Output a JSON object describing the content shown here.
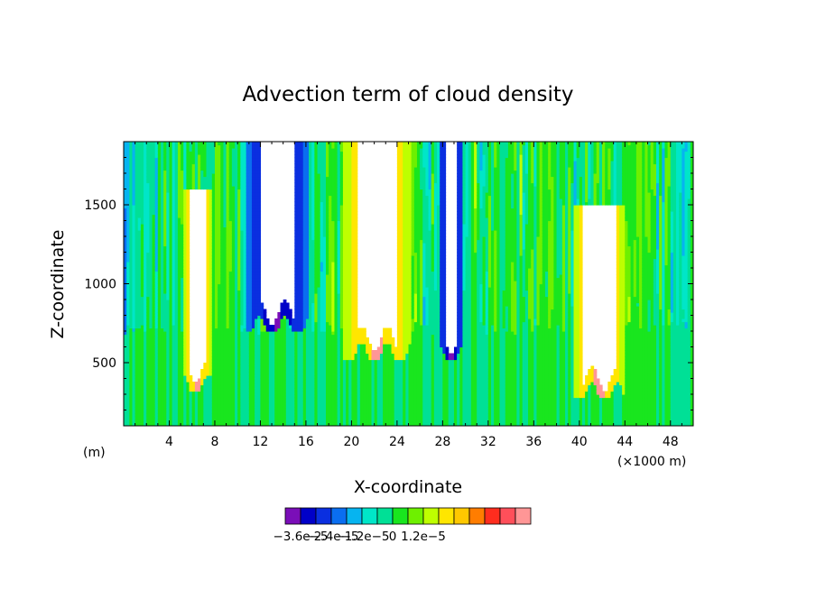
{
  "chart_data": {
    "type": "heatmap",
    "title": "Advection term of cloud density",
    "xlabel": "X-coordinate",
    "ylabel": "Z-coordinate",
    "x_unit_left": "(m)",
    "x_unit_right": "(×1000 m)",
    "xlim": [
      0,
      50
    ],
    "ylim": [
      100,
      1900
    ],
    "x_ticks": [
      4,
      8,
      12,
      16,
      20,
      24,
      28,
      32,
      36,
      40,
      44,
      48
    ],
    "x_tick_labels": [
      "4",
      "8",
      "12",
      "16",
      "20",
      "24",
      "28",
      "32",
      "36",
      "40",
      "44",
      "48"
    ],
    "y_ticks": [
      500,
      1000,
      1500
    ],
    "y_tick_labels": [
      "500",
      "1000",
      "1500"
    ],
    "colorbar": {
      "boundaries": [
        -3.6e-05,
        -3e-05,
        -2.4e-05,
        -1.8e-05,
        -1.2e-05,
        -6e-06,
        0,
        6e-06,
        1.2e-05,
        1.8e-05,
        2.4e-05
      ],
      "colors": [
        "#7a0eb8",
        "#0000c8",
        "#0a2fe0",
        "#0a6ef0",
        "#06b4f0",
        "#00e6c8",
        "#00e096",
        "#19e61e",
        "#6ef000",
        "#beff00",
        "#ffe600",
        "#ffc800",
        "#ff7d00",
        "#ff2d1e",
        "#ff4f5a",
        "#ff9696"
      ],
      "labels": [
        "−3.6e−5",
        "−2.4e−5",
        "−1.2e−5",
        "0",
        "1.2e−5"
      ],
      "label_values": [
        -3.6e-05,
        -2.4e-05,
        -1.2e-05,
        0,
        1.2e-05
      ]
    },
    "undefined_color": "#ffffff",
    "features": [
      {
        "kind": "neutral-band",
        "z": [
          100,
          720
        ],
        "value": 0
      },
      {
        "kind": "cloud-core",
        "x": [
          11.5,
          15.5
        ],
        "z_top": 1900,
        "z_bottom": 820,
        "edge": "negative"
      },
      {
        "kind": "cloud-core",
        "x": [
          20,
          24.5
        ],
        "z_top": 1900,
        "z_bottom": 650,
        "edge": "positive"
      },
      {
        "kind": "cloud-core",
        "x": [
          28,
          29.5
        ],
        "z_top": 1900,
        "z_bottom": 640,
        "edge": "negative"
      },
      {
        "kind": "cloud-core",
        "x": [
          5.5,
          7.5
        ],
        "z_top": 1600,
        "z_bottom": 450,
        "edge": "positive"
      },
      {
        "kind": "cloud-core",
        "x": [
          40,
          43.5
        ],
        "z_top": 1500,
        "z_bottom": 400,
        "edge": "positive"
      }
    ]
  }
}
